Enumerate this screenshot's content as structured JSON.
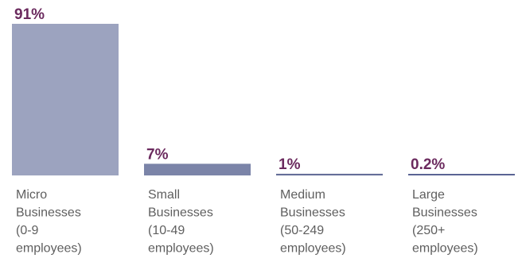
{
  "chart_data": {
    "type": "bar",
    "title": "",
    "xlabel": "",
    "ylabel": "",
    "categories": [
      [
        "Micro",
        "Businesses",
        "(0-9",
        "employees)"
      ],
      [
        "Small",
        "Businesses",
        "(10-49",
        "employees)"
      ],
      [
        "Medium",
        "Businesses",
        "(50-249",
        "employees)"
      ],
      [
        "Large",
        "Businesses",
        "(250+",
        "employees)"
      ]
    ],
    "values": [
      91,
      7,
      1,
      0.2
    ],
    "value_labels": [
      "91%",
      "7%",
      "1%",
      "0.2%"
    ],
    "ylim": [
      0,
      91
    ],
    "grid": false,
    "legend": "none",
    "colors": {
      "bars": [
        "#9ca3bf",
        "#7b84a8",
        "#656e98",
        "#5a6494"
      ],
      "value_label": "#6b2a5e",
      "category_label": "#5f5f5f"
    }
  }
}
